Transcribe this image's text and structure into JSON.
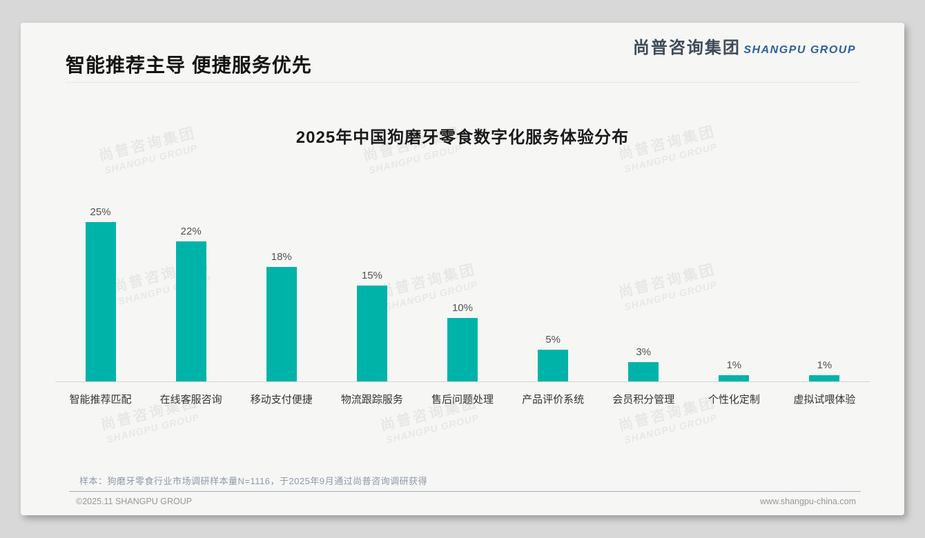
{
  "page": {
    "title": "智能推荐主导 便捷服务优先",
    "logo": {
      "cn": "尚普咨询集团",
      "en": "SHANGPU GROUP"
    },
    "watermark": {
      "line1": "尚普咨询集团",
      "line2": "SHANGPU GROUP"
    },
    "note": "样本：狗磨牙零食行业市场调研样本量N=1116，于2025年9月通过尚普咨询调研获得",
    "footer": {
      "left": "©2025.11 SHANGPU GROUP",
      "right": "www.shangpu-china.com"
    }
  },
  "chart_data": {
    "type": "bar",
    "title": "2025年中国狗磨牙零食数字化服务体验分布",
    "categories": [
      "智能推荐匹配",
      "在线客服咨询",
      "移动支付便捷",
      "物流跟踪服务",
      "售后问题处理",
      "产品评价系统",
      "会员积分管理",
      "个性化定制",
      "虚拟试喂体验"
    ],
    "values": [
      25,
      22,
      18,
      15,
      10,
      5,
      3,
      1,
      1
    ],
    "value_labels": [
      "25%",
      "22%",
      "18%",
      "15%",
      "10%",
      "5%",
      "3%",
      "1%",
      "1%"
    ],
    "unit": "%",
    "bar_color": "#00b3a8",
    "ylim": [
      0,
      27
    ],
    "grid": false,
    "legend": null,
    "xlabel": "",
    "ylabel": ""
  }
}
